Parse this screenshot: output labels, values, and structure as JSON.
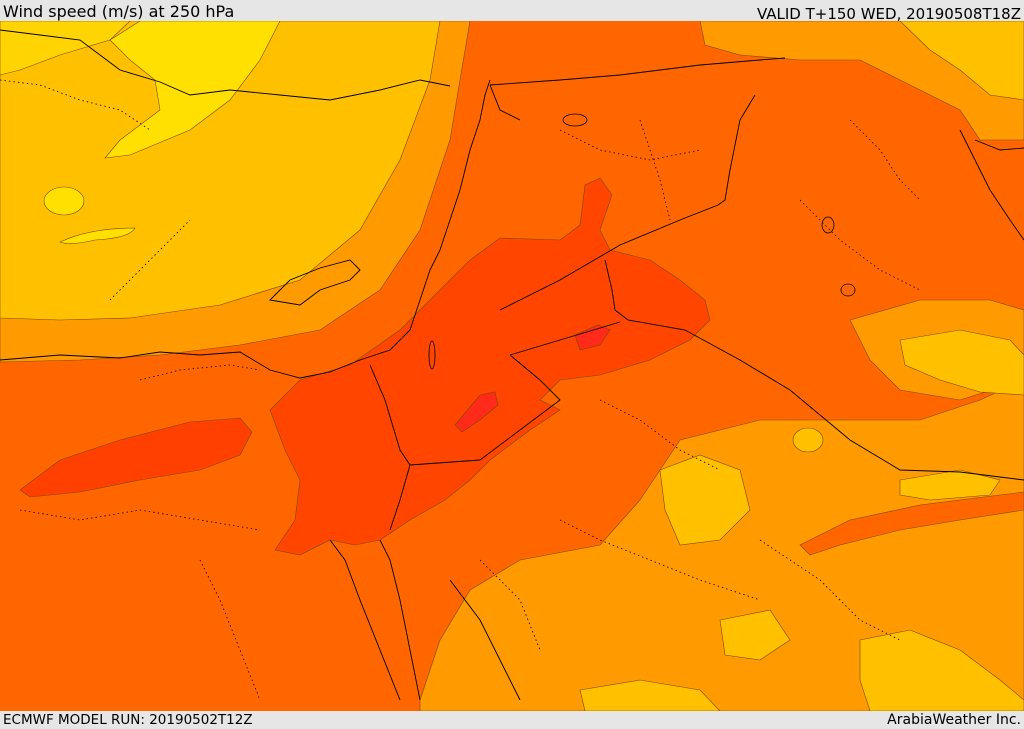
{
  "header": {
    "title": "Wind speed (m/s) at 250 hPa",
    "valid_time": "VALID T+150 WED, 20190508T18Z"
  },
  "footer": {
    "model_run": "ECMWF MODEL RUN: 20190502T12Z",
    "credit": "ArabiaWeather Inc."
  },
  "palette": {
    "yellow": "#ffe000",
    "light_orange": "#ffc000",
    "orange": "#ffa000",
    "dark_orange": "#ff8000",
    "deep_orange": "#ff6600",
    "red_orange": "#ff4800",
    "red": "#ff3018"
  }
}
